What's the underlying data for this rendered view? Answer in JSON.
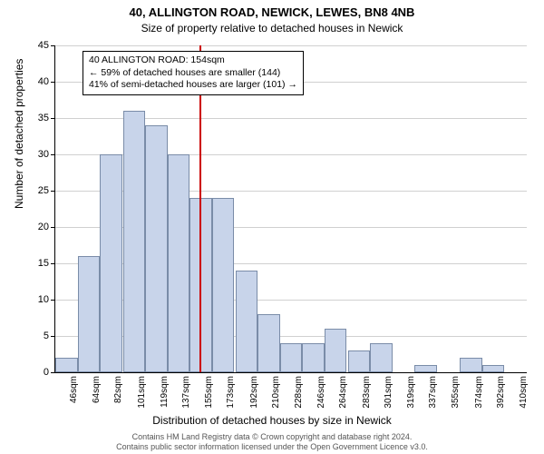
{
  "title_main": "40, ALLINGTON ROAD, NEWICK, LEWES, BN8 4NB",
  "title_sub": "Size of property relative to detached houses in Newick",
  "y_axis_label": "Number of detached properties",
  "x_axis_label": "Distribution of detached houses by size in Newick",
  "chart": {
    "type": "histogram",
    "ylim": [
      0,
      45
    ],
    "ytick_step": 5,
    "grid_color": "#d0d0d0",
    "bar_fill": "#c8d4ea",
    "bar_stroke": "#7a8ca8",
    "refline_color": "#cc0000",
    "refline_x_value": 154,
    "x_min": 37,
    "x_max": 419,
    "bar_width_units": 18,
    "xtick_labels": [
      "46sqm",
      "64sqm",
      "82sqm",
      "101sqm",
      "119sqm",
      "137sqm",
      "155sqm",
      "173sqm",
      "192sqm",
      "210sqm",
      "228sqm",
      "246sqm",
      "264sqm",
      "283sqm",
      "301sqm",
      "319sqm",
      "337sqm",
      "355sqm",
      "374sqm",
      "392sqm",
      "410sqm"
    ],
    "bars": [
      {
        "x": 46,
        "y": 2
      },
      {
        "x": 64,
        "y": 16
      },
      {
        "x": 82,
        "y": 30
      },
      {
        "x": 101,
        "y": 36
      },
      {
        "x": 119,
        "y": 34
      },
      {
        "x": 137,
        "y": 30
      },
      {
        "x": 155,
        "y": 24
      },
      {
        "x": 173,
        "y": 24
      },
      {
        "x": 192,
        "y": 14
      },
      {
        "x": 210,
        "y": 8
      },
      {
        "x": 228,
        "y": 4
      },
      {
        "x": 246,
        "y": 4
      },
      {
        "x": 264,
        "y": 6
      },
      {
        "x": 283,
        "y": 3
      },
      {
        "x": 301,
        "y": 4
      },
      {
        "x": 319,
        "y": 0
      },
      {
        "x": 337,
        "y": 1
      },
      {
        "x": 355,
        "y": 0
      },
      {
        "x": 374,
        "y": 2
      },
      {
        "x": 392,
        "y": 1
      },
      {
        "x": 410,
        "y": 0
      }
    ]
  },
  "annotation": {
    "line1": "40 ALLINGTON ROAD: 154sqm",
    "line2": "← 59% of detached houses are smaller (144)",
    "line3": "41% of semi-detached houses are larger (101) →"
  },
  "footer_line1": "Contains HM Land Registry data © Crown copyright and database right 2024.",
  "footer_line2": "Contains public sector information licensed under the Open Government Licence v3.0."
}
